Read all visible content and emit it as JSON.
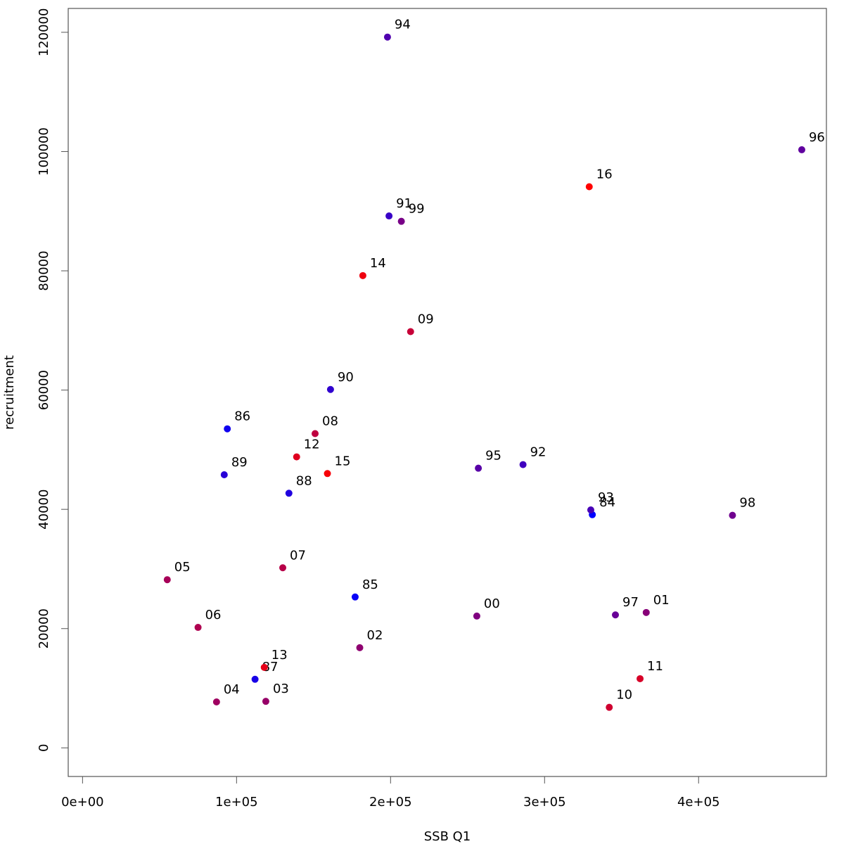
{
  "chart_data": {
    "type": "scatter",
    "title": "",
    "xlabel": "SSB Q1",
    "ylabel": "recruitment",
    "xlim": [
      -9300,
      483000
    ],
    "ylim": [
      -4800,
      124000
    ],
    "x_ticks": [
      0,
      100000,
      200000,
      300000,
      400000
    ],
    "x_tick_labels": [
      "0e+00",
      "1e+05",
      "2e+05",
      "3e+05",
      "4e+05"
    ],
    "y_ticks": [
      0,
      20000,
      40000,
      60000,
      80000,
      100000,
      120000
    ],
    "y_tick_labels": [
      "0",
      "20000",
      "40000",
      "60000",
      "80000",
      "100000",
      "120000"
    ],
    "grid": false,
    "color_note": "points shaded from blue (1984) to red (2016)",
    "points": [
      {
        "label": "84",
        "x": 331000,
        "y": 39100,
        "color": "#0000ff"
      },
      {
        "label": "85",
        "x": 177000,
        "y": 25300,
        "color": "#0808f7"
      },
      {
        "label": "86",
        "x": 94000,
        "y": 53500,
        "color": "#1010ef"
      },
      {
        "label": "87",
        "x": 112000,
        "y": 11500,
        "color": "#1717e8"
      },
      {
        "label": "88",
        "x": 134000,
        "y": 42700,
        "color": "#1f1fe0"
      },
      {
        "label": "89",
        "x": 92000,
        "y": 45800,
        "color": "#2727d8"
      },
      {
        "label": "90",
        "x": 161000,
        "y": 60100,
        "color": "#2f2fd0"
      },
      {
        "label": "91",
        "x": 199000,
        "y": 89200,
        "color": "#3737c8"
      },
      {
        "label": "92",
        "x": 286000,
        "y": 47500,
        "color": "#3f3fc0"
      },
      {
        "label": "93",
        "x": 330000,
        "y": 39900,
        "color": "#4646b9"
      },
      {
        "label": "94",
        "x": 198000,
        "y": 119200,
        "color": "#4e4eb1"
      },
      {
        "label": "95",
        "x": 257000,
        "y": 46900,
        "color": "#5656a9"
      },
      {
        "label": "96",
        "x": 467000,
        "y": 100300,
        "color": "#5e5ea1"
      },
      {
        "label": "97",
        "x": 346000,
        "y": 22300,
        "color": "#666699"
      },
      {
        "label": "98",
        "x": 422000,
        "y": 39000,
        "color": "#6d6d92"
      },
      {
        "label": "99",
        "x": 207000,
        "y": 88300,
        "color": "#75758a"
      },
      {
        "label": "00",
        "x": 256000,
        "y": 22100,
        "color": "#7d7d82"
      },
      {
        "label": "01",
        "x": 366000,
        "y": 22700,
        "color": "#85857a"
      },
      {
        "label": "02",
        "x": 180000,
        "y": 16800,
        "color": "#8d8d72"
      },
      {
        "label": "03",
        "x": 119000,
        "y": 7800,
        "color": "#94946b"
      },
      {
        "label": "04",
        "x": 87000,
        "y": 7700,
        "color": "#9c9c63"
      },
      {
        "label": "05",
        "x": 55000,
        "y": 28200,
        "color": "#a4a45b"
      },
      {
        "label": "06",
        "x": 75000,
        "y": 20200,
        "color": "#acac53"
      },
      {
        "label": "07",
        "x": 130000,
        "y": 30200,
        "color": "#b4b44b"
      },
      {
        "label": "08",
        "x": 151000,
        "y": 52700,
        "color": "#bbbb44"
      },
      {
        "label": "09",
        "x": 213000,
        "y": 69800,
        "color": "#c3c33c"
      },
      {
        "label": "10",
        "x": 342000,
        "y": 6800,
        "color": "#cbcb34"
      },
      {
        "label": "11",
        "x": 362000,
        "y": 11600,
        "color": "#d3d32c"
      },
      {
        "label": "12",
        "x": 139000,
        "y": 48800,
        "color": "#dbdb24"
      },
      {
        "label": "13",
        "x": 118000,
        "y": 13500,
        "color": "#e2e21d"
      },
      {
        "label": "14",
        "x": 182000,
        "y": 79200,
        "color": "#eaea15"
      },
      {
        "label": "15",
        "x": 159000,
        "y": 46000,
        "color": "#f2f20d"
      },
      {
        "label": "16",
        "x": 329000,
        "y": 94100,
        "color": "#fafa05"
      }
    ]
  }
}
